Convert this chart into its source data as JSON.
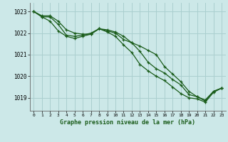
{
  "title": "Graphe pression niveau de la mer (hPa)",
  "background_color": "#cce8e8",
  "grid_color": "#aacfcf",
  "line_color": "#1a5c1a",
  "xlim": [
    -0.5,
    23.5
  ],
  "ylim": [
    1018.4,
    1023.4
  ],
  "yticks": [
    1019,
    1020,
    1021,
    1022,
    1023
  ],
  "xticks": [
    0,
    1,
    2,
    3,
    4,
    5,
    6,
    7,
    8,
    9,
    10,
    11,
    12,
    13,
    14,
    15,
    16,
    17,
    18,
    19,
    20,
    21,
    22,
    23
  ],
  "series": [
    [
      1023.0,
      1022.75,
      1022.75,
      1022.4,
      1021.9,
      1021.85,
      1021.9,
      1022.0,
      1022.2,
      1022.1,
      1022.0,
      1021.7,
      1021.55,
      1021.15,
      1020.65,
      1020.35,
      1020.15,
      1019.85,
      1019.6,
      1019.15,
      1019.05,
      1018.85,
      1019.3,
      1019.45
    ],
    [
      1023.0,
      1022.75,
      1022.55,
      1022.1,
      1021.85,
      1021.75,
      1021.85,
      1021.95,
      1022.2,
      1022.05,
      1021.85,
      1021.45,
      1021.1,
      1020.55,
      1020.25,
      1020.0,
      1019.8,
      1019.5,
      1019.2,
      1019.0,
      1018.95,
      1018.8,
      1019.25,
      1019.45
    ],
    [
      1023.0,
      1022.8,
      1022.8,
      1022.55,
      1022.15,
      1022.0,
      1021.95,
      1021.95,
      1022.2,
      1022.15,
      1022.05,
      1021.85,
      1021.55,
      1021.4,
      1021.2,
      1021.0,
      1020.45,
      1020.1,
      1019.75,
      1019.3,
      1019.05,
      1018.9,
      1019.3,
      1019.45
    ]
  ]
}
